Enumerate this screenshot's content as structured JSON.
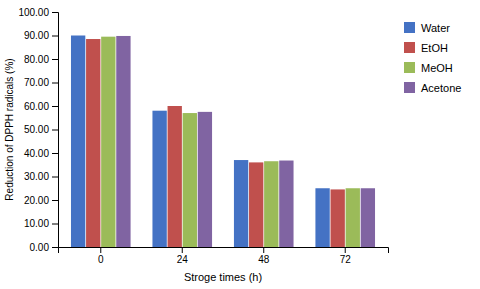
{
  "chart_data": {
    "type": "bar",
    "categories": [
      "0",
      "24",
      "48",
      "72"
    ],
    "series": [
      {
        "name": "Water",
        "color": "#4472C4",
        "values": [
          90.0,
          58.0,
          37.0,
          25.0
        ]
      },
      {
        "name": "EtOH",
        "color": "#C0504D",
        "values": [
          88.5,
          60.0,
          36.0,
          24.5
        ]
      },
      {
        "name": "MeOH",
        "color": "#9BBB59",
        "values": [
          89.5,
          57.0,
          36.5,
          25.0
        ]
      },
      {
        "name": "Acetone",
        "color": "#8064A2",
        "values": [
          89.8,
          57.5,
          36.8,
          25.0
        ]
      }
    ],
    "xlabel": "Stroge times (h)",
    "ylabel": "Reduction of DPPH radicals (%)",
    "ylim": [
      0,
      100
    ],
    "yticks": [
      {
        "value": 0,
        "label": "0.00"
      },
      {
        "value": 10,
        "label": "10.00"
      },
      {
        "value": 20,
        "label": "20.00"
      },
      {
        "value": 30,
        "label": "30.00"
      },
      {
        "value": 40,
        "label": "40.00"
      },
      {
        "value": 50,
        "label": "50.00"
      },
      {
        "value": 60,
        "label": "60.00"
      },
      {
        "value": 70,
        "label": "70.00"
      },
      {
        "value": 80,
        "label": "80.00"
      },
      {
        "value": 90,
        "label": "90.00"
      },
      {
        "value": 100,
        "label": "100.00"
      }
    ],
    "grid": false,
    "legend": "right"
  }
}
